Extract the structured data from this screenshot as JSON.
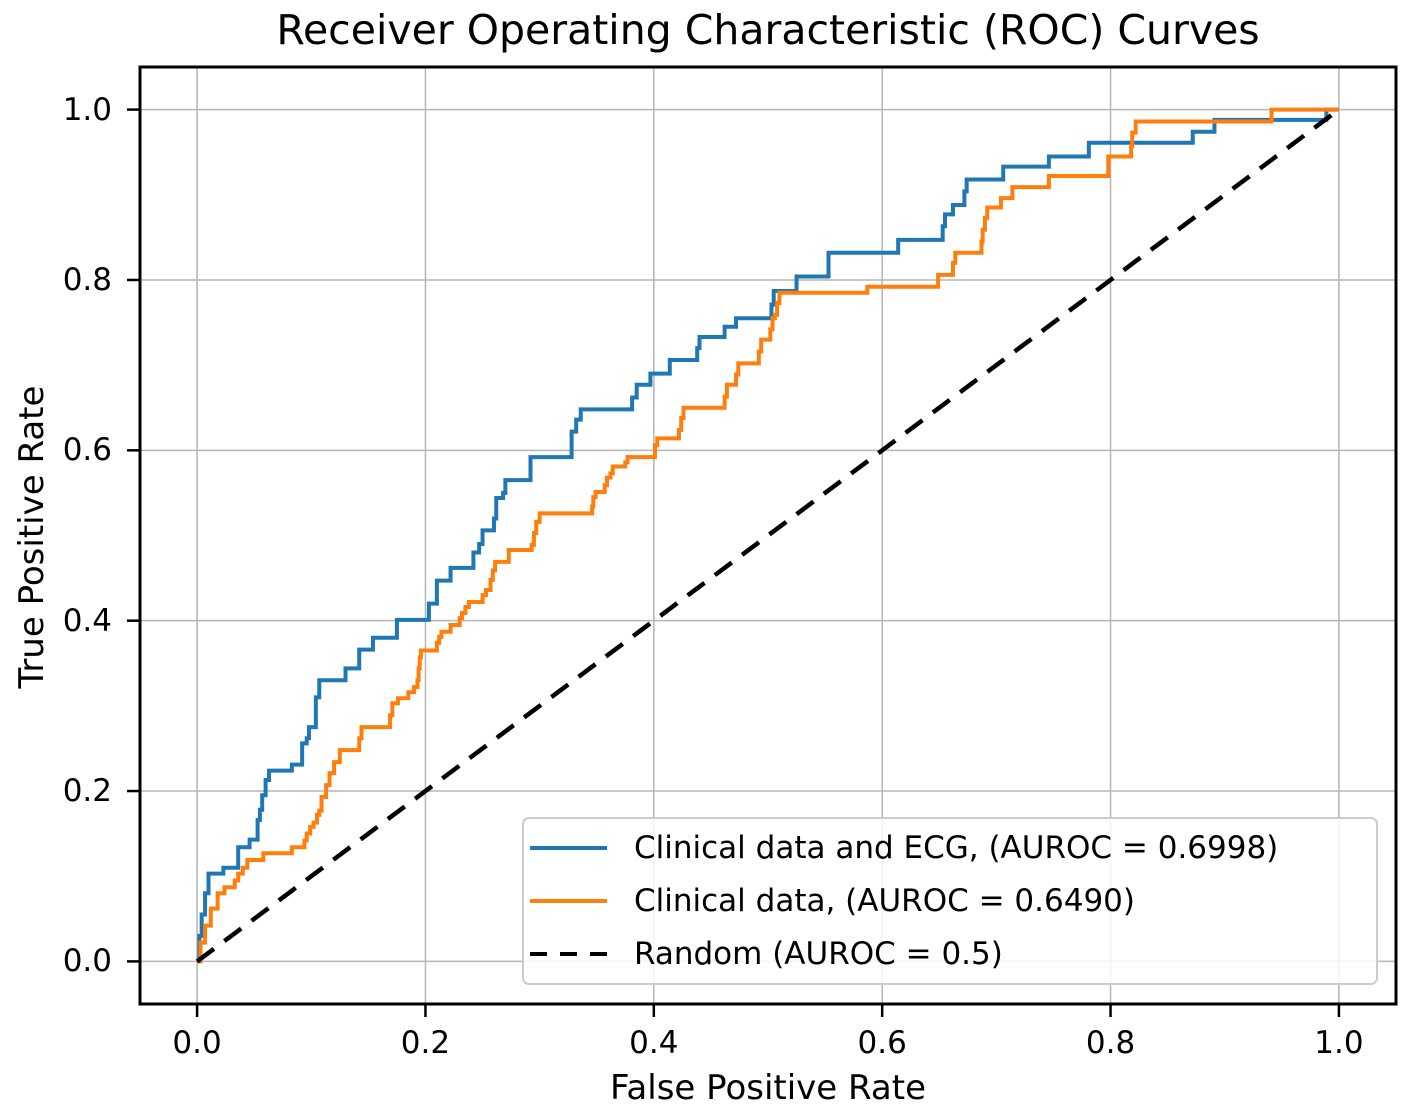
{
  "chart_data": {
    "type": "line",
    "title": "Receiver Operating Characteristic (ROC) Curves",
    "xlabel": "False Positive Rate",
    "ylabel": "True Positive Rate",
    "xlim": [
      -0.05,
      1.05
    ],
    "ylim": [
      -0.05,
      1.05
    ],
    "grid": true,
    "grid_color": "#b5b5b5",
    "legend_position": "lower right",
    "x_tick_values": [
      0.0,
      0.2,
      0.4,
      0.6,
      0.8,
      1.0
    ],
    "x_tick_labels": [
      "0.0",
      "0.2",
      "0.4",
      "0.6",
      "0.8",
      "1.0"
    ],
    "y_tick_values": [
      0.0,
      0.2,
      0.4,
      0.6,
      0.8,
      1.0
    ],
    "y_tick_labels": [
      "0.0",
      "0.2",
      "0.4",
      "0.6",
      "0.8",
      "1.0"
    ],
    "series": [
      {
        "name": "Clinical data and ECG",
        "legend_label": "Clinical data and ECG, (AUROC = 0.6998)",
        "auroc": 0.6998,
        "color": "#1f77b4",
        "dashed": false,
        "step": true,
        "points": [
          [
            0,
            0
          ],
          [
            0.002,
            0.03
          ],
          [
            0.004,
            0.055
          ],
          [
            0.007,
            0.08
          ],
          [
            0.01,
            0.103
          ],
          [
            0.022,
            0.103
          ],
          [
            0.023,
            0.11
          ],
          [
            0.033,
            0.11
          ],
          [
            0.036,
            0.134
          ],
          [
            0.045,
            0.134
          ],
          [
            0.046,
            0.143
          ],
          [
            0.051,
            0.143
          ],
          [
            0.053,
            0.166
          ],
          [
            0.055,
            0.178
          ],
          [
            0.057,
            0.195
          ],
          [
            0.06,
            0.213
          ],
          [
            0.063,
            0.224
          ],
          [
            0.081,
            0.224
          ],
          [
            0.083,
            0.231
          ],
          [
            0.09,
            0.231
          ],
          [
            0.092,
            0.256
          ],
          [
            0.096,
            0.262
          ],
          [
            0.098,
            0.275
          ],
          [
            0.102,
            0.275
          ],
          [
            0.104,
            0.31
          ],
          [
            0.107,
            0.33
          ],
          [
            0.128,
            0.33
          ],
          [
            0.13,
            0.344
          ],
          [
            0.14,
            0.344
          ],
          [
            0.142,
            0.366
          ],
          [
            0.152,
            0.366
          ],
          [
            0.154,
            0.38
          ],
          [
            0.172,
            0.38
          ],
          [
            0.175,
            0.401
          ],
          [
            0.201,
            0.401
          ],
          [
            0.203,
            0.42
          ],
          [
            0.208,
            0.42
          ],
          [
            0.21,
            0.447
          ],
          [
            0.22,
            0.447
          ],
          [
            0.222,
            0.462
          ],
          [
            0.24,
            0.462
          ],
          [
            0.242,
            0.48
          ],
          [
            0.247,
            0.49
          ],
          [
            0.25,
            0.506
          ],
          [
            0.258,
            0.506
          ],
          [
            0.26,
            0.52
          ],
          [
            0.262,
            0.544
          ],
          [
            0.268,
            0.55
          ],
          [
            0.27,
            0.565
          ],
          [
            0.29,
            0.565
          ],
          [
            0.292,
            0.592
          ],
          [
            0.326,
            0.592
          ],
          [
            0.328,
            0.622
          ],
          [
            0.332,
            0.636
          ],
          [
            0.336,
            0.648
          ],
          [
            0.379,
            0.648
          ],
          [
            0.381,
            0.662
          ],
          [
            0.385,
            0.677
          ],
          [
            0.395,
            0.677
          ],
          [
            0.397,
            0.69
          ],
          [
            0.412,
            0.69
          ],
          [
            0.414,
            0.706
          ],
          [
            0.436,
            0.706
          ],
          [
            0.438,
            0.72
          ],
          [
            0.44,
            0.733
          ],
          [
            0.46,
            0.733
          ],
          [
            0.462,
            0.745
          ],
          [
            0.47,
            0.745
          ],
          [
            0.472,
            0.755
          ],
          [
            0.5,
            0.755
          ],
          [
            0.503,
            0.771
          ],
          [
            0.505,
            0.787
          ],
          [
            0.522,
            0.787
          ],
          [
            0.525,
            0.804
          ],
          [
            0.551,
            0.804
          ],
          [
            0.553,
            0.832
          ],
          [
            0.612,
            0.832
          ],
          [
            0.614,
            0.847
          ],
          [
            0.65,
            0.847
          ],
          [
            0.653,
            0.863
          ],
          [
            0.655,
            0.877
          ],
          [
            0.662,
            0.888
          ],
          [
            0.672,
            0.904
          ],
          [
            0.674,
            0.918
          ],
          [
            0.704,
            0.918
          ],
          [
            0.706,
            0.933
          ],
          [
            0.744,
            0.933
          ],
          [
            0.746,
            0.945
          ],
          [
            0.779,
            0.945
          ],
          [
            0.781,
            0.961
          ],
          [
            0.869,
            0.961
          ],
          [
            0.872,
            0.974
          ],
          [
            0.889,
            0.974
          ],
          [
            0.891,
            0.988
          ],
          [
            0.986,
            0.988
          ],
          [
            0.989,
            1
          ],
          [
            1,
            1
          ]
        ]
      },
      {
        "name": "Clinical data",
        "legend_label": "Clinical data, (AUROC = 0.6490)",
        "auroc": 0.649,
        "color": "#ff7f0e",
        "dashed": false,
        "step": true,
        "points": [
          [
            0,
            0
          ],
          [
            0.003,
            0.022
          ],
          [
            0.007,
            0.042
          ],
          [
            0.012,
            0.062
          ],
          [
            0.018,
            0.08
          ],
          [
            0.024,
            0.087
          ],
          [
            0.033,
            0.095
          ],
          [
            0.036,
            0.103
          ],
          [
            0.04,
            0.11
          ],
          [
            0.044,
            0.119
          ],
          [
            0.057,
            0.119
          ],
          [
            0.058,
            0.127
          ],
          [
            0.081,
            0.127
          ],
          [
            0.083,
            0.134
          ],
          [
            0.092,
            0.134
          ],
          [
            0.094,
            0.142
          ],
          [
            0.096,
            0.15
          ],
          [
            0.099,
            0.158
          ],
          [
            0.102,
            0.163
          ],
          [
            0.105,
            0.172
          ],
          [
            0.107,
            0.177
          ],
          [
            0.109,
            0.193
          ],
          [
            0.113,
            0.207
          ],
          [
            0.116,
            0.221
          ],
          [
            0.12,
            0.234
          ],
          [
            0.125,
            0.248
          ],
          [
            0.14,
            0.248
          ],
          [
            0.142,
            0.262
          ],
          [
            0.144,
            0.275
          ],
          [
            0.167,
            0.275
          ],
          [
            0.169,
            0.289
          ],
          [
            0.171,
            0.303
          ],
          [
            0.176,
            0.309
          ],
          [
            0.185,
            0.316
          ],
          [
            0.19,
            0.322
          ],
          [
            0.193,
            0.33
          ],
          [
            0.194,
            0.344
          ],
          [
            0.195,
            0.357
          ],
          [
            0.196,
            0.365
          ],
          [
            0.207,
            0.365
          ],
          [
            0.21,
            0.374
          ],
          [
            0.212,
            0.381
          ],
          [
            0.214,
            0.387
          ],
          [
            0.22,
            0.387
          ],
          [
            0.222,
            0.395
          ],
          [
            0.228,
            0.395
          ],
          [
            0.23,
            0.403
          ],
          [
            0.232,
            0.409
          ],
          [
            0.235,
            0.416
          ],
          [
            0.238,
            0.422
          ],
          [
            0.25,
            0.43
          ],
          [
            0.253,
            0.436
          ],
          [
            0.257,
            0.448
          ],
          [
            0.259,
            0.459
          ],
          [
            0.261,
            0.469
          ],
          [
            0.271,
            0.469
          ],
          [
            0.273,
            0.483
          ],
          [
            0.291,
            0.483
          ],
          [
            0.293,
            0.489
          ],
          [
            0.295,
            0.503
          ],
          [
            0.297,
            0.516
          ],
          [
            0.3,
            0.526
          ],
          [
            0.344,
            0.526
          ],
          [
            0.346,
            0.534
          ],
          [
            0.347,
            0.545
          ],
          [
            0.349,
            0.551
          ],
          [
            0.357,
            0.559
          ],
          [
            0.359,
            0.568
          ],
          [
            0.362,
            0.573
          ],
          [
            0.364,
            0.581
          ],
          [
            0.375,
            0.586
          ],
          [
            0.377,
            0.592
          ],
          [
            0.399,
            0.592
          ],
          [
            0.401,
            0.606
          ],
          [
            0.403,
            0.614
          ],
          [
            0.42,
            0.614
          ],
          [
            0.422,
            0.624
          ],
          [
            0.424,
            0.638
          ],
          [
            0.426,
            0.65
          ],
          [
            0.46,
            0.65
          ],
          [
            0.462,
            0.663
          ],
          [
            0.464,
            0.677
          ],
          [
            0.47,
            0.677
          ],
          [
            0.472,
            0.689
          ],
          [
            0.474,
            0.702
          ],
          [
            0.49,
            0.702
          ],
          [
            0.492,
            0.716
          ],
          [
            0.494,
            0.73
          ],
          [
            0.5,
            0.73
          ],
          [
            0.502,
            0.742
          ],
          [
            0.504,
            0.755
          ],
          [
            0.506,
            0.759
          ],
          [
            0.508,
            0.773
          ],
          [
            0.51,
            0.785
          ],
          [
            0.585,
            0.785
          ],
          [
            0.587,
            0.792
          ],
          [
            0.647,
            0.792
          ],
          [
            0.649,
            0.806
          ],
          [
            0.66,
            0.806
          ],
          [
            0.662,
            0.82
          ],
          [
            0.664,
            0.832
          ],
          [
            0.685,
            0.832
          ],
          [
            0.687,
            0.845
          ],
          [
            0.688,
            0.859
          ],
          [
            0.69,
            0.873
          ],
          [
            0.692,
            0.885
          ],
          [
            0.702,
            0.885
          ],
          [
            0.704,
            0.896
          ],
          [
            0.712,
            0.896
          ],
          [
            0.714,
            0.909
          ],
          [
            0.744,
            0.909
          ],
          [
            0.746,
            0.922
          ],
          [
            0.796,
            0.922
          ],
          [
            0.798,
            0.945
          ],
          [
            0.816,
            0.945
          ],
          [
            0.818,
            0.957
          ],
          [
            0.819,
            0.973
          ],
          [
            0.822,
            0.986
          ],
          [
            0.939,
            0.986
          ],
          [
            0.941,
            1
          ],
          [
            1,
            1
          ]
        ]
      },
      {
        "name": "Random",
        "legend_label": "Random (AUROC = 0.5)",
        "auroc": 0.5,
        "color": "#000000",
        "dashed": true,
        "step": false,
        "points": [
          [
            0,
            0
          ],
          [
            1,
            1
          ]
        ]
      }
    ]
  }
}
